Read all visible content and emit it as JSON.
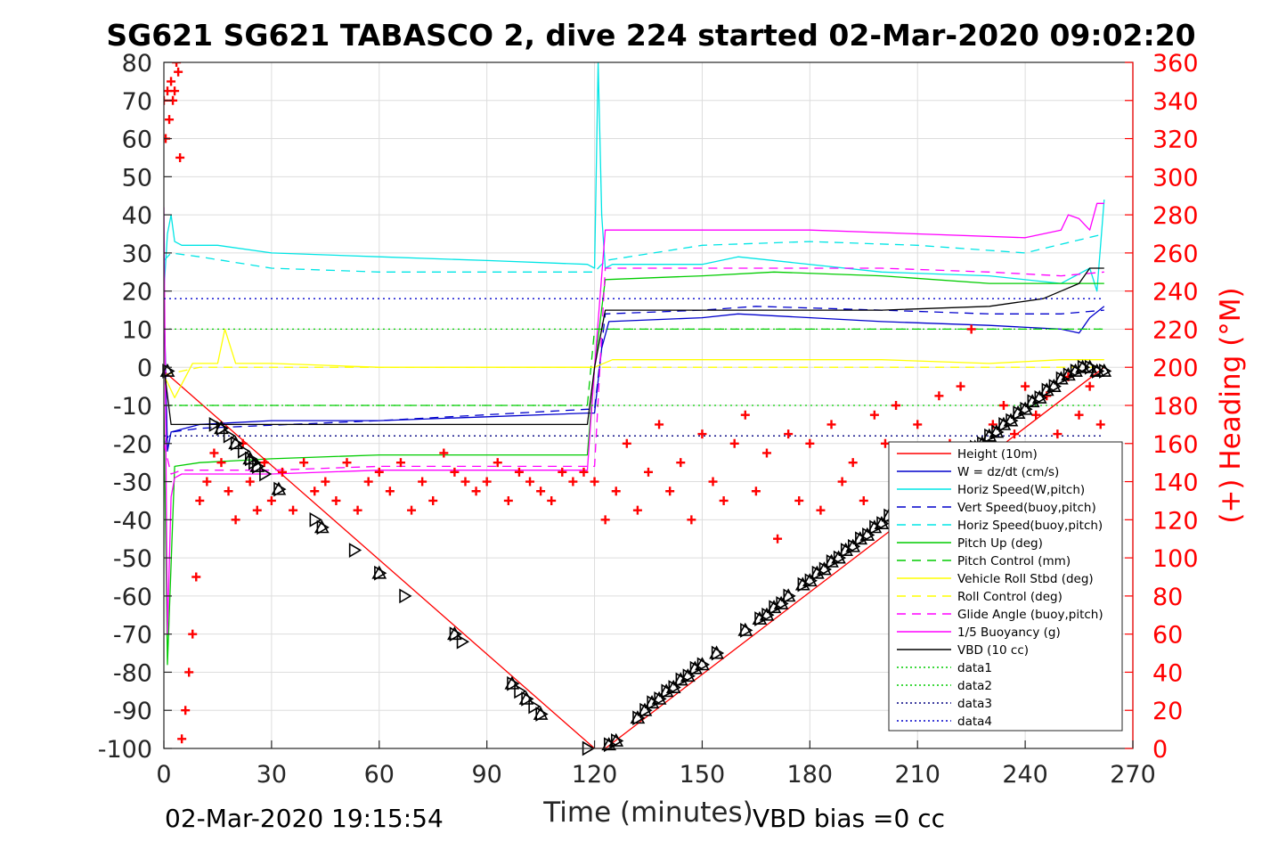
{
  "chart_data": {
    "type": "line",
    "title": "SG621 SG621 TABASCO 2, dive 224 started 02-Mar-2020 09:02:20",
    "xlabel": "Time (minutes)",
    "ylabel_right": "(+) Heading (°M)",
    "footer_left": "02-Mar-2020 19:15:54",
    "footer_right": "VBD bias =0 cc",
    "xlim": [
      0,
      270
    ],
    "ylim": [
      -100,
      80
    ],
    "ylim_right": [
      0,
      360
    ],
    "x_ticks": [
      "0",
      "30",
      "60",
      "90",
      "120",
      "150",
      "180",
      "210",
      "240",
      "270"
    ],
    "y_ticks": [
      "80",
      "70",
      "60",
      "50",
      "40",
      "30",
      "20",
      "10",
      "0",
      "-10",
      "-20",
      "-30",
      "-40",
      "-50",
      "-60",
      "-70",
      "-80",
      "-90",
      "-100"
    ],
    "y_right_ticks": [
      "360",
      "340",
      "320",
      "300",
      "280",
      "260",
      "240",
      "220",
      "200",
      "180",
      "160",
      "140",
      "120",
      "100",
      "80",
      "60",
      "40",
      "20",
      "0"
    ],
    "grid": true,
    "legend_position": "bottom-right",
    "legend": [
      {
        "name": "Height (10m)",
        "color": "#ff0000",
        "style": "solid"
      },
      {
        "name": "W = dz/dt (cm/s)",
        "color": "#0000cc",
        "style": "solid"
      },
      {
        "name": "Horiz Speed(W,pitch)",
        "color": "#00e5e5",
        "style": "solid"
      },
      {
        "name": "Vert Speed(buoy,pitch)",
        "color": "#0000cc",
        "style": "dashed"
      },
      {
        "name": "Horiz Speed(buoy,pitch)",
        "color": "#00e5e5",
        "style": "dashed"
      },
      {
        "name": "Pitch Up (deg)",
        "color": "#00cc00",
        "style": "solid"
      },
      {
        "name": "Pitch Control (mm)",
        "color": "#00cc00",
        "style": "dashed"
      },
      {
        "name": "Vehicle Roll Stbd (deg)",
        "color": "#ffff00",
        "style": "solid"
      },
      {
        "name": "Roll Control (deg)",
        "color": "#ffff00",
        "style": "dashed"
      },
      {
        "name": "Glide Angle (buoy,pitch)",
        "color": "#ff00ff",
        "style": "dashed"
      },
      {
        "name": "1/5 Buoyancy (g)",
        "color": "#ff00ff",
        "style": "solid"
      },
      {
        "name": "VBD (10 cc)",
        "color": "#000000",
        "style": "solid"
      },
      {
        "name": "data1",
        "color": "#00cc00",
        "style": "dotted"
      },
      {
        "name": "data2",
        "color": "#00cc00",
        "style": "dotted"
      },
      {
        "name": "data3",
        "color": "#000080",
        "style": "dotted"
      },
      {
        "name": "data4",
        "color": "#0000cc",
        "style": "dotted"
      }
    ],
    "series": [
      {
        "name": "Height (10m)",
        "color": "#ff0000",
        "x": [
          0,
          120,
          123,
          262
        ],
        "y": [
          -1,
          -100,
          -100,
          0
        ]
      },
      {
        "name": "W = dz/dt (cm/s)",
        "color": "#0000cc",
        "x": [
          0,
          1,
          2,
          10,
          30,
          60,
          90,
          118,
          120,
          122,
          124,
          150,
          160,
          200,
          230,
          250,
          255,
          258,
          262
        ],
        "y": [
          20,
          -22,
          -17,
          -15,
          -14,
          -14,
          -13,
          -12,
          -12,
          5,
          12,
          13,
          14,
          12,
          11,
          10,
          9,
          13,
          16
        ]
      },
      {
        "name": "Horiz Speed(W,pitch)",
        "color": "#00e5e5",
        "x": [
          0,
          1,
          2,
          3,
          5,
          15,
          30,
          60,
          90,
          118,
          120,
          121,
          122,
          123,
          125,
          150,
          160,
          200,
          230,
          250,
          258,
          260,
          262
        ],
        "y": [
          20,
          35,
          40,
          33,
          32,
          32,
          30,
          29,
          28,
          27,
          26,
          80,
          40,
          26,
          27,
          27,
          29,
          25,
          24,
          22,
          26,
          20,
          44
        ]
      },
      {
        "name": "Vert Speed(buoy,pitch)",
        "color": "#0000cc",
        "dash": "10,7",
        "x": [
          0,
          2,
          10,
          60,
          118,
          120,
          123,
          150,
          165,
          200,
          230,
          250,
          262
        ],
        "y": [
          -20,
          -17,
          -16,
          -14,
          -11,
          -11,
          14,
          15,
          16,
          15,
          14,
          14,
          15
        ]
      },
      {
        "name": "Horiz Speed(buoy,pitch)",
        "color": "#00e5e5",
        "dash": "10,7",
        "x": [
          0,
          2,
          10,
          30,
          60,
          90,
          118,
          120,
          123,
          150,
          180,
          210,
          240,
          262
        ],
        "y": [
          28,
          30,
          29,
          26,
          25,
          25,
          25,
          25,
          28,
          32,
          33,
          32,
          30,
          35
        ]
      },
      {
        "name": "Pitch Up (deg)",
        "color": "#00cc00",
        "x": [
          0,
          1,
          3,
          10,
          30,
          60,
          90,
          118,
          120,
          123,
          150,
          170,
          200,
          230,
          262
        ],
        "y": [
          -10,
          -78,
          -26,
          -25,
          -24,
          -23,
          -23,
          -23,
          0,
          23,
          24,
          25,
          24,
          22,
          22
        ]
      },
      {
        "name": "Pitch Control (mm)",
        "color": "#00cc00",
        "dash": "10,7",
        "x": [
          0,
          2,
          60,
          118,
          120,
          123,
          262
        ],
        "y": [
          -10,
          -10,
          -10,
          -10,
          10,
          10,
          10
        ]
      },
      {
        "name": "Vehicle Roll Stbd (deg)",
        "color": "#ffff00",
        "x": [
          0,
          3,
          8,
          15,
          17,
          20,
          30,
          60,
          90,
          118,
          120,
          125,
          150,
          200,
          230,
          250,
          262
        ],
        "y": [
          -2,
          -8,
          1,
          1,
          10,
          1,
          1,
          0,
          0,
          0,
          0,
          2,
          2,
          2,
          1,
          2,
          2
        ]
      },
      {
        "name": "Roll Control (deg)",
        "color": "#ffff00",
        "dash": "10,7",
        "x": [
          0,
          10,
          60,
          118,
          120,
          125,
          262
        ],
        "y": [
          -2,
          0,
          0,
          0,
          0,
          0,
          0
        ]
      },
      {
        "name": "Glide Angle (buoy,pitch)",
        "color": "#ff00ff",
        "dash": "10,7",
        "x": [
          0,
          2,
          5,
          30,
          60,
          90,
          118,
          120,
          123,
          150,
          200,
          230,
          250,
          262
        ],
        "y": [
          -20,
          -28,
          -27,
          -27,
          -26,
          -26,
          -26,
          -26,
          26,
          26,
          26,
          25,
          24,
          25
        ]
      },
      {
        "name": "1/5 Buoyancy (g)",
        "color": "#ff00ff",
        "x": [
          0,
          1,
          2,
          3,
          5,
          30,
          60,
          90,
          118,
          120,
          123,
          150,
          180,
          210,
          240,
          250,
          252,
          255,
          258,
          260,
          262
        ],
        "y": [
          42,
          -70,
          -34,
          -29,
          -28,
          -28,
          -27,
          -27,
          -27,
          0,
          36,
          36,
          36,
          35,
          34,
          36,
          40,
          39,
          36,
          43,
          43
        ]
      },
      {
        "name": "VBD (10 cc)",
        "color": "#000000",
        "x": [
          0,
          2,
          30,
          60,
          90,
          118,
          120,
          123,
          150,
          200,
          230,
          245,
          250,
          255,
          258,
          262
        ],
        "y": [
          0,
          -15,
          -15,
          -15,
          -15,
          -15,
          0,
          15,
          15,
          15,
          16,
          18,
          20,
          22,
          26,
          26
        ]
      },
      {
        "name": "data1",
        "color": "#00cc00",
        "dash": "2,4",
        "x": [
          0,
          262
        ],
        "y": [
          -10,
          -10
        ]
      },
      {
        "name": "data2",
        "color": "#00cc00",
        "dash": "2,4",
        "x": [
          0,
          262
        ],
        "y": [
          10,
          10
        ]
      },
      {
        "name": "data3",
        "color": "#000080",
        "dash": "2,4",
        "x": [
          0,
          262
        ],
        "y": [
          -18,
          -18
        ]
      },
      {
        "name": "data4",
        "color": "#0000cc",
        "dash": "2,4",
        "x": [
          0,
          262
        ],
        "y": [
          18,
          18
        ]
      }
    ],
    "heading_marks": {
      "name": "(+) Heading (°M)",
      "color": "#ff0000",
      "marker": "+",
      "axis": "right",
      "x": [
        0,
        0.5,
        1,
        1.5,
        2,
        2.5,
        3,
        3.5,
        4,
        4.5,
        5,
        6,
        7,
        8,
        9,
        10,
        12,
        14,
        16,
        18,
        20,
        22,
        24,
        26,
        28,
        30,
        33,
        36,
        39,
        42,
        45,
        48,
        51,
        54,
        57,
        60,
        63,
        66,
        69,
        72,
        75,
        78,
        81,
        84,
        87,
        90,
        93,
        96,
        99,
        102,
        105,
        108,
        111,
        114,
        117,
        120,
        123,
        126,
        129,
        132,
        135,
        138,
        141,
        144,
        147,
        150,
        153,
        156,
        159,
        162,
        165,
        168,
        171,
        174,
        177,
        180,
        183,
        186,
        189,
        192,
        195,
        198,
        201,
        204,
        207,
        210,
        213,
        216,
        219,
        222,
        225,
        228,
        231,
        234,
        237,
        240,
        243,
        246,
        249,
        252,
        255,
        258,
        261
      ],
      "y": [
        340,
        320,
        345,
        330,
        350,
        340,
        345,
        360,
        355,
        310,
        5,
        20,
        40,
        60,
        90,
        130,
        140,
        155,
        150,
        135,
        120,
        160,
        140,
        125,
        150,
        130,
        145,
        125,
        150,
        135,
        140,
        130,
        150,
        125,
        140,
        145,
        135,
        150,
        125,
        140,
        130,
        155,
        145,
        140,
        135,
        140,
        150,
        130,
        145,
        140,
        135,
        130,
        145,
        140,
        145,
        140,
        120,
        135,
        160,
        125,
        145,
        170,
        135,
        150,
        120,
        165,
        140,
        130,
        160,
        175,
        135,
        155,
        110,
        165,
        130,
        160,
        125,
        170,
        140,
        150,
        130,
        175,
        160,
        180,
        150,
        170,
        145,
        185,
        160,
        190,
        220,
        150,
        170,
        180,
        165,
        190,
        175,
        185,
        165,
        195,
        175,
        190,
        170
      ]
    },
    "markers_down": {
      "x": [
        1,
        14,
        16,
        18,
        20,
        22,
        24,
        25,
        26,
        28,
        32,
        42,
        44,
        53,
        60,
        67,
        81,
        83,
        97,
        99,
        101,
        103,
        105,
        118
      ],
      "y": [
        -1,
        -15,
        -16,
        -18,
        -20,
        -22,
        -24,
        -25,
        -26,
        -28,
        -32,
        -40,
        -42,
        -48,
        -54,
        -60,
        -70,
        -72,
        -83,
        -85,
        -87,
        -89,
        -91,
        -100
      ]
    },
    "markers_up": {
      "x": [
        124,
        126,
        132,
        134,
        136,
        138,
        140,
        142,
        144,
        146,
        148,
        150,
        154,
        162,
        166,
        168,
        170,
        172,
        174,
        178,
        180,
        182,
        184,
        186,
        188,
        190,
        192,
        194,
        196,
        198,
        200,
        202,
        204,
        206,
        208,
        210,
        212,
        214,
        216,
        218,
        220,
        222,
        224,
        226,
        228,
        230,
        232,
        234,
        236,
        238,
        240,
        242,
        244,
        246,
        248,
        250,
        252,
        254,
        256,
        258,
        260,
        262
      ],
      "y": [
        -99,
        -98,
        -92,
        -90,
        -88,
        -87,
        -85,
        -84,
        -82,
        -81,
        -79,
        -78,
        -75,
        -69,
        -66,
        -65,
        -63,
        -62,
        -60,
        -57,
        -56,
        -54,
        -53,
        -51,
        -50,
        -48,
        -47,
        -45,
        -44,
        -42,
        -41,
        -39,
        -38,
        -36,
        -35,
        -33,
        -32,
        -30,
        -29,
        -27,
        -26,
        -24,
        -23,
        -21,
        -20,
        -18,
        -17,
        -15,
        -14,
        -12,
        -11,
        -9,
        -8,
        -6,
        -5,
        -3,
        -2,
        -1,
        0,
        0,
        -1,
        -1
      ]
    }
  }
}
